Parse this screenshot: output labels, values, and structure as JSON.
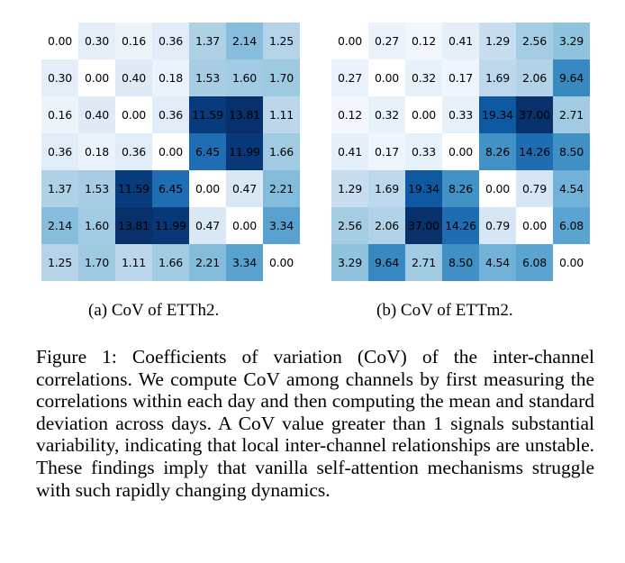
{
  "chart_data": [
    {
      "type": "heatmap",
      "caption": "(a) CoV of ETTh2.",
      "values": [
        [
          "0.00",
          "0.30",
          "0.16",
          "0.36",
          "1.37",
          "2.14",
          "1.25"
        ],
        [
          "0.30",
          "0.00",
          "0.40",
          "0.18",
          "1.53",
          "1.60",
          "1.70"
        ],
        [
          "0.16",
          "0.40",
          "0.00",
          "0.36",
          "11.59",
          "13.81",
          "1.11"
        ],
        [
          "0.36",
          "0.18",
          "0.36",
          "0.00",
          "6.45",
          "11.99",
          "1.66"
        ],
        [
          "1.37",
          "1.53",
          "11.59",
          "6.45",
          "0.00",
          "0.47",
          "2.21"
        ],
        [
          "2.14",
          "1.60",
          "13.81",
          "11.99",
          "0.47",
          "0.00",
          "3.34"
        ],
        [
          "1.25",
          "1.70",
          "1.11",
          "1.66",
          "2.21",
          "3.34",
          "0.00"
        ]
      ],
      "colormap": "Blues",
      "vmin": 0,
      "vmax": 13.81
    },
    {
      "type": "heatmap",
      "caption": "(b) CoV of ETTm2.",
      "values": [
        [
          "0.00",
          "0.27",
          "0.12",
          "0.41",
          "1.29",
          "2.56",
          "3.29"
        ],
        [
          "0.27",
          "0.00",
          "0.32",
          "0.17",
          "1.69",
          "2.06",
          "9.64"
        ],
        [
          "0.12",
          "0.32",
          "0.00",
          "0.33",
          "19.34",
          "37.00",
          "2.71"
        ],
        [
          "0.41",
          "0.17",
          "0.33",
          "0.00",
          "8.26",
          "14.26",
          "8.50"
        ],
        [
          "1.29",
          "1.69",
          "19.34",
          "8.26",
          "0.00",
          "0.79",
          "4.54"
        ],
        [
          "2.56",
          "2.06",
          "37.00",
          "14.26",
          "0.79",
          "0.00",
          "6.08"
        ],
        [
          "3.29",
          "9.64",
          "2.71",
          "8.50",
          "4.54",
          "6.08",
          "0.00"
        ]
      ],
      "colormap": "Blues",
      "vmin": 0,
      "vmax": 37.0
    }
  ],
  "figure_caption": "Figure 1: Coefficients of variation (CoV) of the inter-channel correlations. We compute CoV among channels by first measuring the correlations within each day and then computing the mean and standard deviation across days. A CoV value greater than 1 signals substantial variability, indicating that local inter-channel relationships are unstable. These findings imply that vanilla self-attention mechanisms struggle with such rapidly changing dynamics."
}
